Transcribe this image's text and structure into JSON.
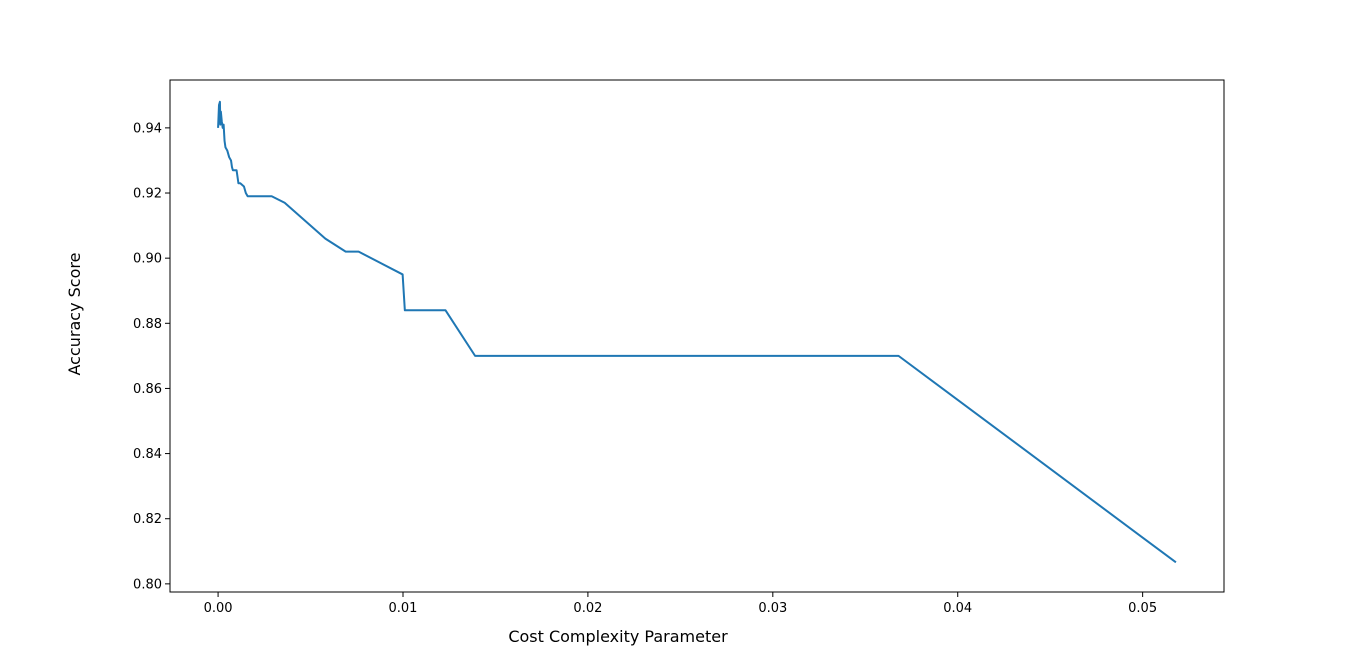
{
  "chart_data": {
    "type": "line",
    "title": "",
    "xlabel": "Cost Complexity Parameter",
    "ylabel": "Accuracy Score",
    "xlim": [
      -0.0026,
      0.0544
    ],
    "ylim": [
      0.7975,
      0.9547
    ],
    "xticks": [
      0.0,
      0.01,
      0.02,
      0.03,
      0.04,
      0.05
    ],
    "xtick_labels": [
      "0.00",
      "0.01",
      "0.02",
      "0.03",
      "0.04",
      "0.05"
    ],
    "yticks": [
      0.8,
      0.82,
      0.84,
      0.86,
      0.88,
      0.9,
      0.92,
      0.94
    ],
    "ytick_labels": [
      "0.80",
      "0.82",
      "0.84",
      "0.86",
      "0.88",
      "0.90",
      "0.92",
      "0.94"
    ],
    "grid": false,
    "series": [
      {
        "color": "#1f77b4",
        "x": [
          0.0,
          5e-05,
          0.0001,
          0.00012,
          0.00015,
          0.0002,
          0.00025,
          0.0003,
          0.00035,
          0.0004,
          0.0005,
          0.0006,
          0.0007,
          0.00075,
          0.0008,
          0.001,
          0.0011,
          0.0012,
          0.0014,
          0.0015,
          0.0016,
          0.0029,
          0.0036,
          0.0058,
          0.0069,
          0.0076,
          0.00998,
          0.0101,
          0.0123,
          0.0139,
          0.0368,
          0.0518
        ],
        "y": [
          0.94,
          0.947,
          0.948,
          0.941,
          0.945,
          0.942,
          0.94,
          0.941,
          0.936,
          0.934,
          0.933,
          0.931,
          0.93,
          0.928,
          0.927,
          0.927,
          0.923,
          0.923,
          0.922,
          0.92,
          0.919,
          0.919,
          0.917,
          0.906,
          0.902,
          0.902,
          0.895,
          0.884,
          0.884,
          0.87,
          0.87,
          0.8066
        ]
      }
    ]
  }
}
